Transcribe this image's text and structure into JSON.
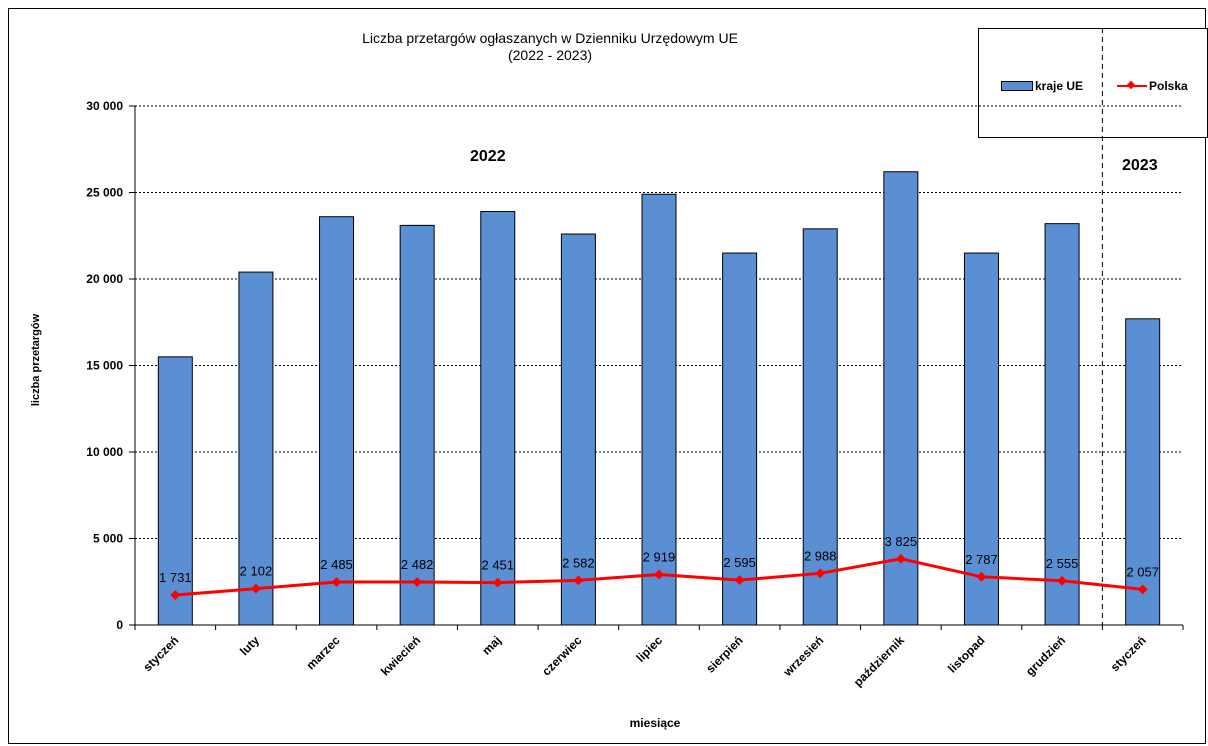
{
  "chart_data": {
    "type": "bar",
    "title": "Liczba przetargów ogłaszanych w Dzienniku Urzędowym UE",
    "subtitle": "(2022 - 2023)",
    "xlabel": "miesiące",
    "ylabel": "liczba przetargów",
    "ylim": [
      0,
      30000
    ],
    "yticks": [
      0,
      5000,
      10000,
      15000,
      20000,
      25000,
      30000
    ],
    "ytick_labels": [
      "0",
      "5 000",
      "10 000",
      "15 000",
      "20 000",
      "25 000",
      "30 000"
    ],
    "grid": "horizontal dashed",
    "legend_position": "top-right",
    "categories": [
      "styczeń",
      "luty",
      "marzec",
      "kwiecień",
      "maj",
      "czerwiec",
      "lipiec",
      "sierpień",
      "wrzesień",
      "październik",
      "listopad",
      "grudzień",
      "styczeń"
    ],
    "annotations": [
      "2022",
      "2023"
    ],
    "series": [
      {
        "name": "kraje UE",
        "kind": "bar",
        "color": "#5b8fd4",
        "values": [
          15500,
          20400,
          23600,
          23100,
          23900,
          22600,
          24900,
          21500,
          22900,
          26200,
          21500,
          23200,
          17700
        ]
      },
      {
        "name": "Polska",
        "kind": "line",
        "color": "#ff0000",
        "values": [
          1731,
          2102,
          2485,
          2482,
          2451,
          2582,
          2919,
          2595,
          2988,
          3825,
          2787,
          2555,
          2057
        ],
        "labels": [
          "1 731",
          "2 102",
          "2 485",
          "2 482",
          "2 451",
          "2 582",
          "2 919",
          "2 595",
          "2 988",
          "3 825",
          "2 787",
          "2 555",
          "2 057"
        ]
      }
    ]
  }
}
